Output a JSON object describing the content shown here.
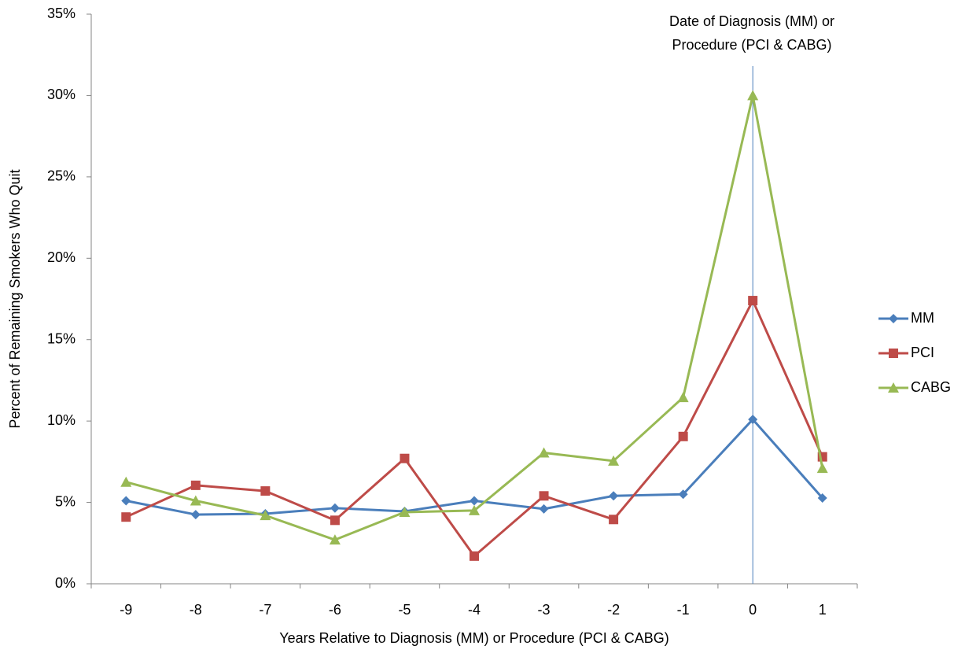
{
  "chart_data": {
    "type": "line",
    "xlabel": "Years Relative to Diagnosis (MM) or Procedure (PCI & CABG)",
    "ylabel": "Percent of Remaining Smokers Who Quit",
    "annotation": [
      "Date of Diagnosis (MM)  or",
      "Procedure (PCI & CABG)"
    ],
    "vline": {
      "category": "0",
      "color": "#4a7ebb"
    },
    "categories": [
      "-9",
      "-8",
      "-7",
      "-6",
      "-5",
      "-4",
      "-3",
      "-2",
      "-1",
      "0",
      "1"
    ],
    "series": [
      {
        "name": "MM",
        "color": "#4a7ebb",
        "marker": "diamond",
        "values": [
          5.1,
          4.25,
          4.3,
          4.65,
          4.45,
          5.1,
          4.6,
          5.4,
          5.5,
          10.1,
          5.27
        ]
      },
      {
        "name": "PCI",
        "color": "#be4b48",
        "marker": "square",
        "values": [
          4.1,
          6.05,
          5.7,
          3.9,
          7.7,
          1.7,
          5.4,
          3.95,
          9.05,
          17.4,
          7.8
        ]
      },
      {
        "name": "CABG",
        "color": "#98b954",
        "marker": "triangle",
        "values": [
          6.25,
          5.1,
          4.2,
          2.7,
          4.4,
          4.5,
          8.05,
          7.55,
          11.45,
          30.0,
          7.1
        ]
      }
    ],
    "ylim": [
      0,
      35
    ],
    "yticks": [
      {
        "value": 0,
        "label": "0%"
      },
      {
        "value": 5,
        "label": "5%"
      },
      {
        "value": 10,
        "label": "10%"
      },
      {
        "value": 15,
        "label": "15%"
      },
      {
        "value": 20,
        "label": "20%"
      },
      {
        "value": 25,
        "label": "25%"
      },
      {
        "value": 30,
        "label": "30%"
      },
      {
        "value": 35,
        "label": "35%"
      }
    ],
    "grid": false,
    "legend": "right"
  }
}
